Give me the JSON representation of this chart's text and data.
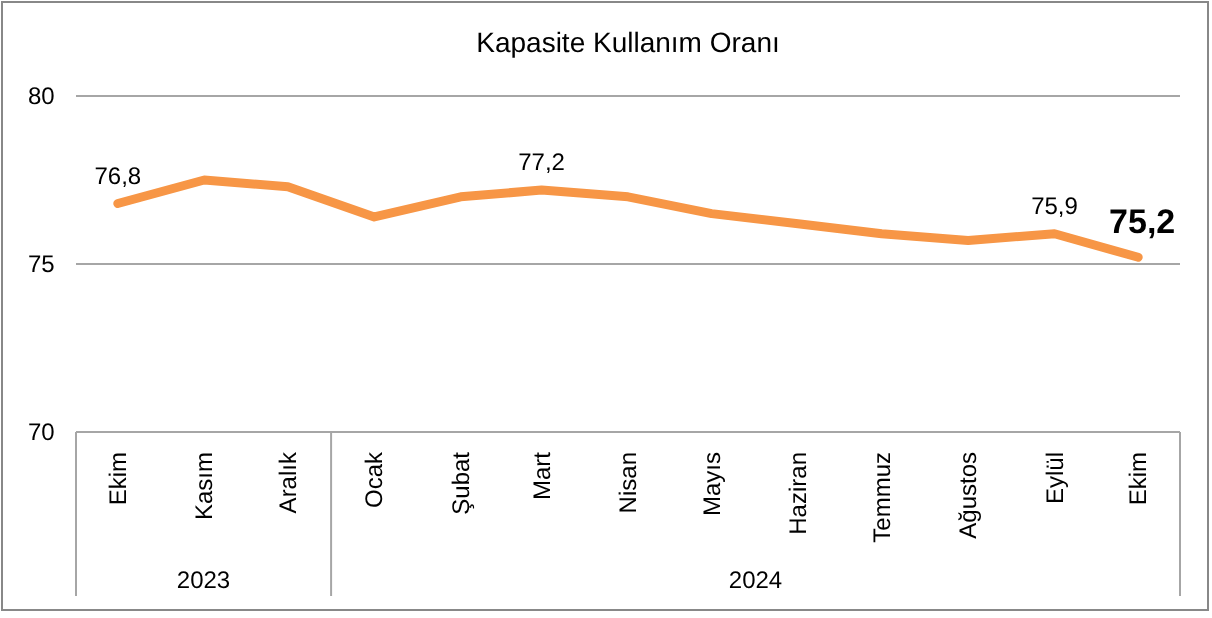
{
  "chart_data": {
    "type": "line",
    "title": "Kapasite Kullanım Oranı",
    "x": [
      "2023-10",
      "2023-11",
      "2023-12",
      "2024-01",
      "2024-02",
      "2024-03",
      "2024-04",
      "2024-05",
      "2024-06",
      "2024-07",
      "2024-08",
      "2024-09",
      "2024-10"
    ],
    "xlim": [
      "2023-09-16",
      "2024-10-16"
    ],
    "xticks": [
      {
        "value": "2023-10",
        "label": "Ekim"
      },
      {
        "value": "2023-11",
        "label": "Kasım"
      },
      {
        "value": "2023-12",
        "label": "Aralık"
      },
      {
        "value": "2024-01",
        "label": "Ocak"
      },
      {
        "value": "2024-02",
        "label": "Şubat"
      },
      {
        "value": "2024-03",
        "label": "Mart"
      },
      {
        "value": "2024-04",
        "label": "Nisan"
      },
      {
        "value": "2024-05",
        "label": "Mayıs"
      },
      {
        "value": "2024-06",
        "label": "Haziran"
      },
      {
        "value": "2024-07",
        "label": "Temmuz"
      },
      {
        "value": "2024-08",
        "label": "Ağustos"
      },
      {
        "value": "2024-09",
        "label": "Eylül"
      },
      {
        "value": "2024-10",
        "label": "Ekim"
      }
    ],
    "series": [
      {
        "color": "#f79646",
        "values": [
          76.8,
          77.5,
          77.3,
          76.4,
          77.0,
          77.2,
          77.0,
          76.5,
          76.2,
          75.9,
          75.7,
          75.9,
          75.2
        ],
        "value_labels": [
          "76,8",
          null,
          null,
          null,
          null,
          "77,2",
          null,
          null,
          null,
          null,
          null,
          "75,9",
          "75,2"
        ]
      }
    ],
    "annotations": [
      "2023",
      "2024"
    ],
    "ylim": [
      70,
      80
    ],
    "yticks": [
      70,
      75,
      80
    ],
    "grid": "y",
    "marker": "none",
    "line_style": "solid"
  }
}
